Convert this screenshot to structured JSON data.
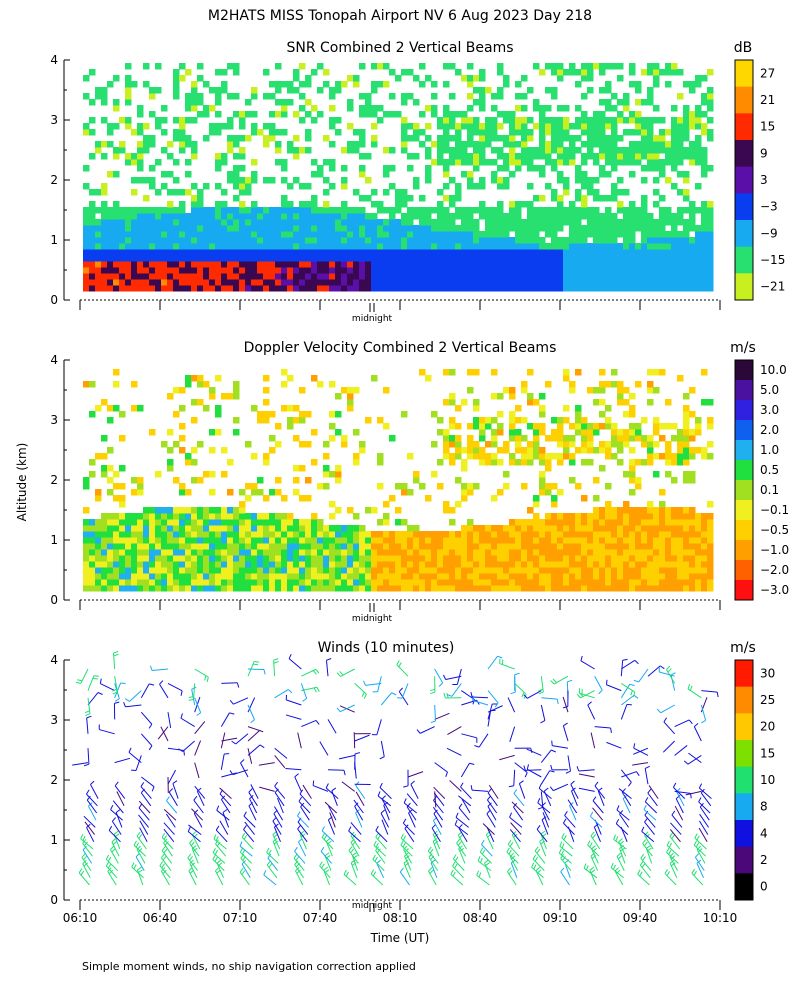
{
  "figure": {
    "main_title": "M2HATS MISS Tonopah Airport NV   6 Aug 2023 Day 218",
    "y_axis_label": "Altitude (km)",
    "x_axis_label": "Time (UT)",
    "footnote": "Simple moment winds, no ship navigation correction applied",
    "midnight_label": "midnight"
  },
  "chart_data": [
    {
      "type": "heatmap",
      "title": "SNR Combined 2 Vertical Beams",
      "ylabel": "Altitude (km)",
      "ylim": [
        0,
        4
      ],
      "yticks": [
        "0",
        "1",
        "2",
        "3",
        "4"
      ],
      "xlim_utc": [
        "06:10",
        "10:10"
      ],
      "colorbar": {
        "unit": "dB",
        "labels": [
          "27",
          "21",
          "15",
          "9",
          "3",
          "−3",
          "−9",
          "−15",
          "−21"
        ],
        "colors": [
          "#ffd700",
          "#ff8c00",
          "#ff2a00",
          "#3a0850",
          "#5a10a8",
          "#0a3cf0",
          "#18aaf0",
          "#28e070",
          "#c8f020"
        ]
      },
      "regions": [
        {
          "kind": "band",
          "x0": 0.0,
          "x1": 1.0,
          "ylo": 0.15,
          "yhi": 0.75,
          "value": -3,
          "note": "strong return near ground, highest early"
        },
        {
          "kind": "band",
          "x0": 0.0,
          "x1": 0.45,
          "ylo": 0.15,
          "yhi": 0.55,
          "value": 18,
          "note": "very high SNR before midnight"
        },
        {
          "kind": "band",
          "x0": 0.0,
          "x1": 1.0,
          "ylo": 0.75,
          "yhi": 1.5,
          "value": -12,
          "note": "moderate SNR boundary layer"
        },
        {
          "kind": "patchy",
          "x0": 0.0,
          "x1": 1.0,
          "ylo": 1.5,
          "yhi": 3.9,
          "value": -19,
          "note": "sparse weak returns aloft"
        }
      ]
    },
    {
      "type": "heatmap",
      "title": "Doppler Velocity Combined 2 Vertical Beams",
      "ylabel": "Altitude (km)",
      "ylim": [
        0,
        4
      ],
      "yticks": [
        "0",
        "1",
        "2",
        "3",
        "4"
      ],
      "xlim_utc": [
        "06:10",
        "10:10"
      ],
      "colorbar": {
        "unit": "m/s",
        "labels": [
          "10.0",
          "5.0",
          "3.0",
          "2.0",
          "1.0",
          "0.5",
          "0.1",
          "−0.1",
          "−0.5",
          "−1.0",
          "−2.0",
          "−3.0"
        ],
        "colors": [
          "#2a0838",
          "#4a10a0",
          "#3020e0",
          "#1060f0",
          "#20b0f0",
          "#20e040",
          "#a0e020",
          "#f0f020",
          "#ffd000",
          "#ffa000",
          "#ff6000",
          "#ff1010"
        ]
      },
      "regions": [
        {
          "kind": "band",
          "x0": 0.0,
          "x1": 0.45,
          "ylo": 0.15,
          "yhi": 1.3,
          "value": 0.3,
          "note": "mixed green / yellow, weak vertical motion"
        },
        {
          "kind": "band",
          "x0": 0.45,
          "x1": 1.0,
          "ylo": 0.15,
          "yhi": 1.4,
          "value": -0.8,
          "note": "orange downward motion after midnight"
        },
        {
          "kind": "patchy",
          "x0": 0.0,
          "x1": 1.0,
          "ylo": 1.5,
          "yhi": 3.8,
          "value": -0.2,
          "note": "sparse yellow / green patches aloft"
        }
      ]
    },
    {
      "type": "wind_barbs",
      "title": "Winds (10 minutes)",
      "ylabel": "Altitude (km)",
      "xlabel": "Time (UT)",
      "ylim": [
        0,
        4
      ],
      "yticks": [
        "0",
        "1",
        "2",
        "3",
        "4"
      ],
      "xticks": [
        "06:10",
        "06:40",
        "07:10",
        "07:40",
        "08:10",
        "08:40",
        "09:10",
        "09:40",
        "10:10"
      ],
      "colorbar": {
        "unit": "m/s",
        "labels": [
          "30",
          "25",
          "20",
          "15",
          "10",
          "8",
          "4",
          "2",
          "0"
        ],
        "colors": [
          "#ff1a00",
          "#ff8c00",
          "#ffc800",
          "#7ee000",
          "#20e070",
          "#18aaf0",
          "#1010e0",
          "#4a0878",
          "#000000"
        ]
      },
      "profiles_every_minutes": 10,
      "speed_by_altitude": [
        {
          "ylo": 0.2,
          "yhi": 0.9,
          "speed_ms": 12
        },
        {
          "ylo": 0.9,
          "yhi": 1.8,
          "speed_ms": 6
        },
        {
          "ylo": 1.8,
          "yhi": 3.2,
          "speed_ms": 5
        },
        {
          "ylo": 3.2,
          "yhi": 4.0,
          "speed_ms": 9
        }
      ]
    }
  ]
}
